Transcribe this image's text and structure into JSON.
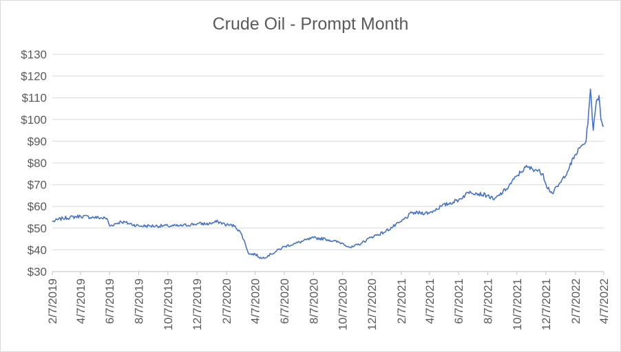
{
  "chart_data": {
    "type": "line",
    "title": "Crude Oil - Prompt Month",
    "xlabel": "",
    "ylabel": "",
    "ylim": [
      30,
      130
    ],
    "y_ticks": [
      "$30",
      "$40",
      "$50",
      "$60",
      "$70",
      "$80",
      "$90",
      "$100",
      "$110",
      "$120",
      "$130"
    ],
    "x_ticks": [
      "2/7/2019",
      "4/7/2019",
      "6/7/2019",
      "8/7/2019",
      "10/7/2019",
      "12/7/2019",
      "2/7/2020",
      "4/7/2020",
      "6/7/2020",
      "8/7/2020",
      "10/7/2020",
      "12/7/2020",
      "2/7/2021",
      "4/7/2021",
      "6/7/2021",
      "8/7/2021",
      "10/7/2021",
      "12/7/2021",
      "2/7/2022",
      "4/7/2022"
    ],
    "grid": true,
    "legend": "none",
    "series_color": "#4472c4",
    "series": [
      {
        "x": [
          "2019-02-07",
          "2019-03-01",
          "2019-04-07",
          "2019-05-01",
          "2019-06-01",
          "2019-06-07",
          "2019-07-01",
          "2019-08-07",
          "2019-09-01",
          "2019-10-07",
          "2019-11-01",
          "2019-12-07",
          "2020-01-01",
          "2020-01-20",
          "2020-02-07",
          "2020-02-25",
          "2020-03-10",
          "2020-03-25",
          "2020-04-07",
          "2020-04-20",
          "2020-05-10",
          "2020-06-07",
          "2020-07-01",
          "2020-08-07",
          "2020-09-01",
          "2020-10-07",
          "2020-10-25",
          "2020-11-15",
          "2020-12-07",
          "2021-01-01",
          "2021-02-07",
          "2021-03-01",
          "2021-04-07",
          "2021-05-01",
          "2021-06-07",
          "2021-07-01",
          "2021-07-15",
          "2021-08-07",
          "2021-08-20",
          "2021-09-15",
          "2021-10-07",
          "2021-10-25",
          "2021-11-15",
          "2021-12-01",
          "2021-12-07",
          "2021-12-20",
          "2022-01-07",
          "2022-01-25",
          "2022-02-07",
          "2022-02-20",
          "2022-03-01",
          "2022-03-08",
          "2022-03-10",
          "2022-03-16",
          "2022-03-23",
          "2022-03-28",
          "2022-04-01",
          "2022-04-07"
        ],
        "y": [
          53,
          54.5,
          55.5,
          55,
          54.5,
          51,
          53,
          51,
          51,
          51,
          51,
          52,
          52,
          53,
          51.5,
          51,
          47,
          38,
          38,
          36,
          38,
          41.5,
          43,
          45.5,
          45,
          43,
          41,
          43,
          46,
          48,
          53,
          57,
          57,
          60,
          63,
          67,
          66,
          65,
          63,
          68,
          74,
          78,
          77,
          75,
          70,
          66,
          71,
          78,
          84,
          88,
          90,
          108,
          114,
          95,
          109,
          111,
          100,
          97
        ]
      }
    ]
  }
}
